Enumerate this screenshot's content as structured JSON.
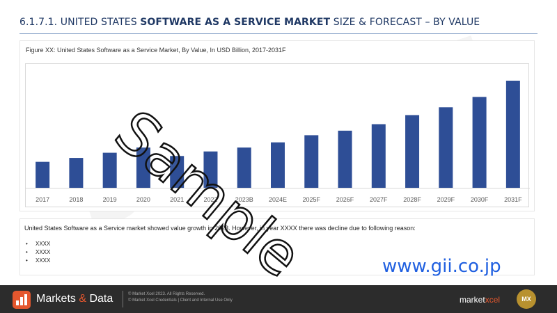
{
  "header": {
    "title_prefix": "6.1.7.1. UNITED STATES ",
    "title_strong": "SOFTWARE AS A SERVICE MARKET",
    "title_suffix": " SIZE & FORECAST – BY VALUE"
  },
  "chart_data": {
    "type": "bar",
    "title": "Figure XX: United States Software as a Service Market, By Value, In USD Billion, 2017-2031F",
    "categories": [
      "2017",
      "2018",
      "2019",
      "2020",
      "2021",
      "2022",
      "2023B",
      "2024E",
      "2025F",
      "2026F",
      "2027F",
      "2028F",
      "2029F",
      "2030F",
      "2031F"
    ],
    "values": [
      40,
      46,
      54,
      62,
      49,
      56,
      62,
      70,
      81,
      88,
      98,
      112,
      124,
      140,
      165
    ],
    "ylim": [
      0,
      180
    ],
    "grid": false,
    "bar_color": "#2e4e96"
  },
  "note": {
    "text": "United States Software as a Service market showed value growth in 2023. However, in year XXXX there was decline due to following reason:",
    "bullets": [
      "XXXX",
      "XXXX",
      "XXXX"
    ]
  },
  "watermarks": {
    "background": "SAMPLE",
    "overlay": "Sample",
    "url": "www.gii.co.jp"
  },
  "footer": {
    "brand_left": "Markets ",
    "brand_amp": "&",
    "brand_right": " Data",
    "legal_line1": "© Market Xcel 2023. All Rights Reserved.",
    "legal_line2": "© Market Xcel Credentials | Client and Internal Use Only",
    "mx_left": "market",
    "mx_right": "xcel",
    "badge": "MX"
  },
  "colors": {
    "accent": "#e4572e",
    "title": "#1f3864",
    "url": "#1f5fe0"
  }
}
